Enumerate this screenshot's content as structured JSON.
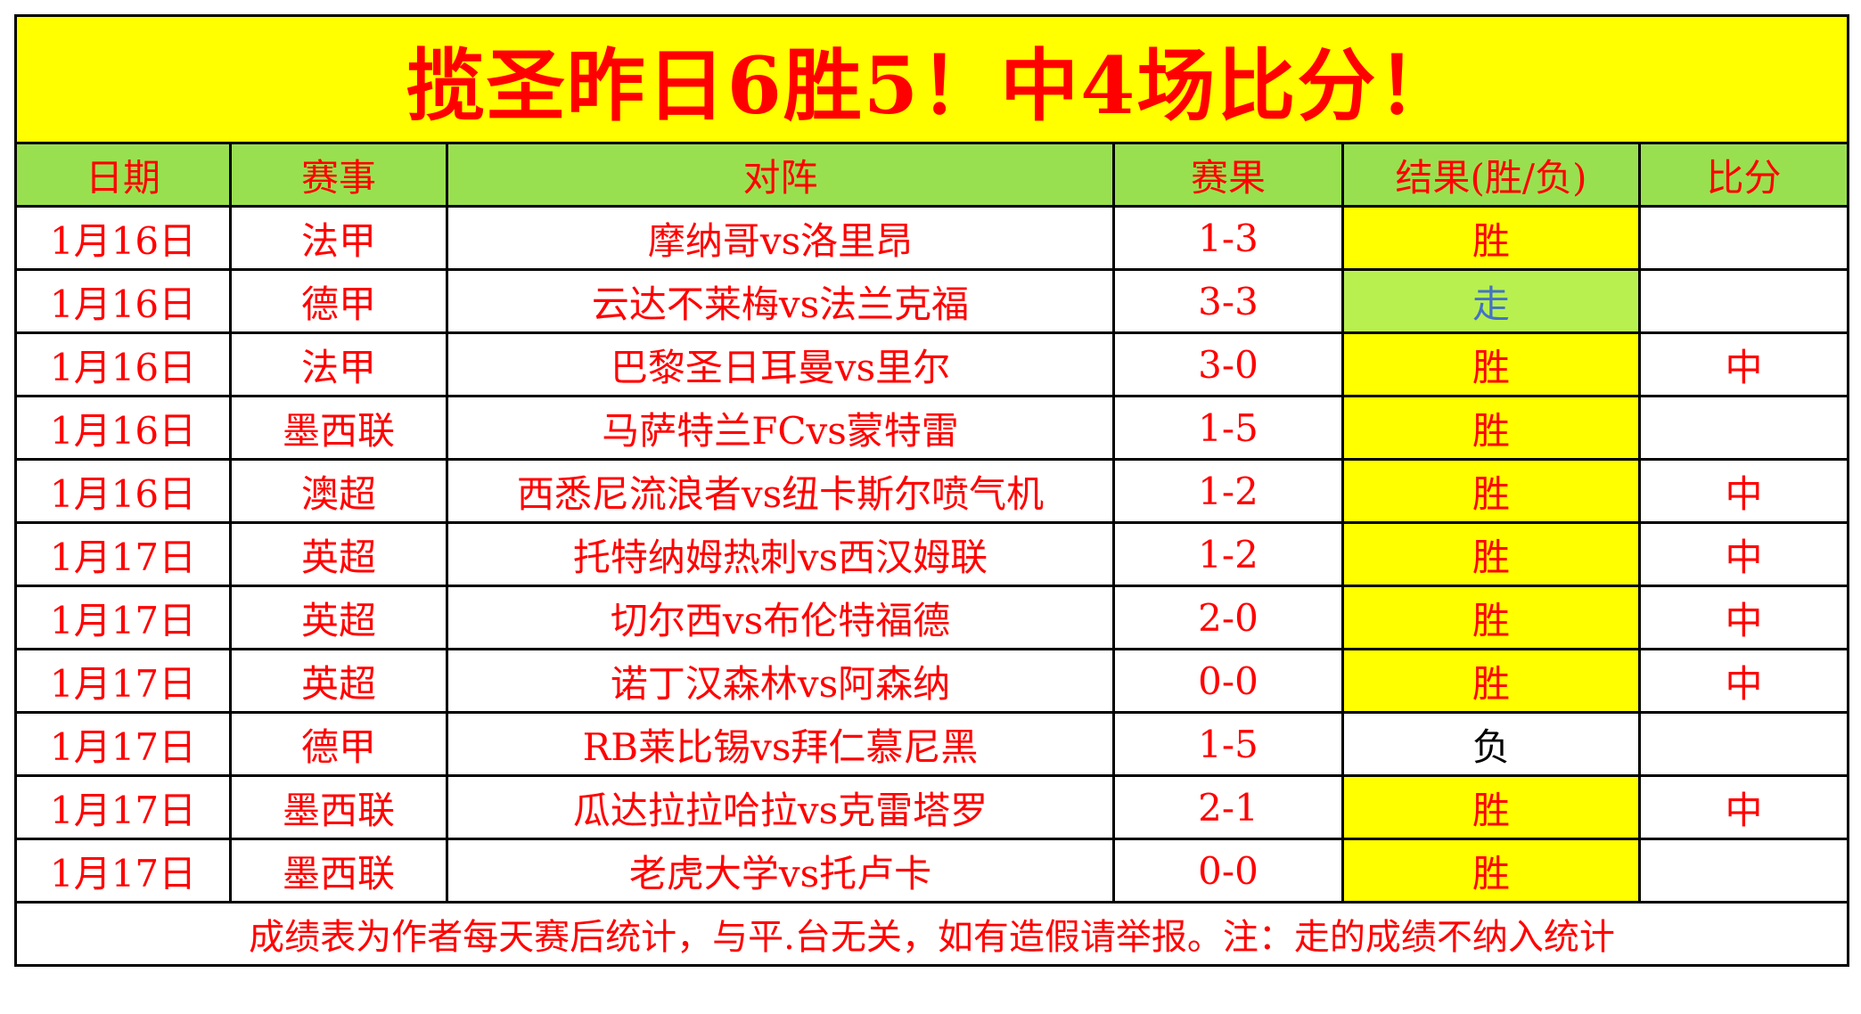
{
  "title": "揽圣昨日6胜5！中4场比分！",
  "headers": [
    "日期",
    "赛事",
    "对阵",
    "赛果",
    "结果(胜/负)",
    "比分"
  ],
  "colors": {
    "title_bg": "#ffff00",
    "header_bg": "#99e050",
    "win_bg": "#ffff00",
    "draw_bg": "#b8f050",
    "text": "#ff0000",
    "draw_text": "#4472c4",
    "loss_text": "#000000"
  },
  "rows": [
    {
      "date": "1月16日",
      "league": "法甲",
      "match": "摩纳哥vs洛里昂",
      "score": "1-3",
      "result": "胜",
      "hit": ""
    },
    {
      "date": "1月16日",
      "league": "德甲",
      "match": "云达不莱梅vs法兰克福",
      "score": "3-3",
      "result": "走",
      "hit": ""
    },
    {
      "date": "1月16日",
      "league": "法甲",
      "match": "巴黎圣日耳曼vs里尔",
      "score": "3-0",
      "result": "胜",
      "hit": "中"
    },
    {
      "date": "1月16日",
      "league": "墨西联",
      "match": "马萨特兰FCvs蒙特雷",
      "score": "1-5",
      "result": "胜",
      "hit": ""
    },
    {
      "date": "1月16日",
      "league": "澳超",
      "match": "西悉尼流浪者vs纽卡斯尔喷气机",
      "score": "1-2",
      "result": "胜",
      "hit": "中"
    },
    {
      "date": "1月17日",
      "league": "英超",
      "match": "托特纳姆热刺vs西汉姆联",
      "score": "1-2",
      "result": "胜",
      "hit": "中"
    },
    {
      "date": "1月17日",
      "league": "英超",
      "match": "切尔西vs布伦特福德",
      "score": "2-0",
      "result": "胜",
      "hit": "中"
    },
    {
      "date": "1月17日",
      "league": "英超",
      "match": "诺丁汉森林vs阿森纳",
      "score": "0-0",
      "result": "胜",
      "hit": "中"
    },
    {
      "date": "1月17日",
      "league": "德甲",
      "match": "RB莱比锡vs拜仁慕尼黑",
      "score": "1-5",
      "result": "负",
      "hit": ""
    },
    {
      "date": "1月17日",
      "league": "墨西联",
      "match": "瓜达拉拉哈拉vs克雷塔罗",
      "score": "2-1",
      "result": "胜",
      "hit": "中"
    },
    {
      "date": "1月17日",
      "league": "墨西联",
      "match": "老虎大学vs托卢卡",
      "score": "0-0",
      "result": "胜",
      "hit": ""
    }
  ],
  "footer": "成绩表为作者每天赛后统计，与平.台无关，如有造假请举报。注：走的成绩不纳入统计"
}
